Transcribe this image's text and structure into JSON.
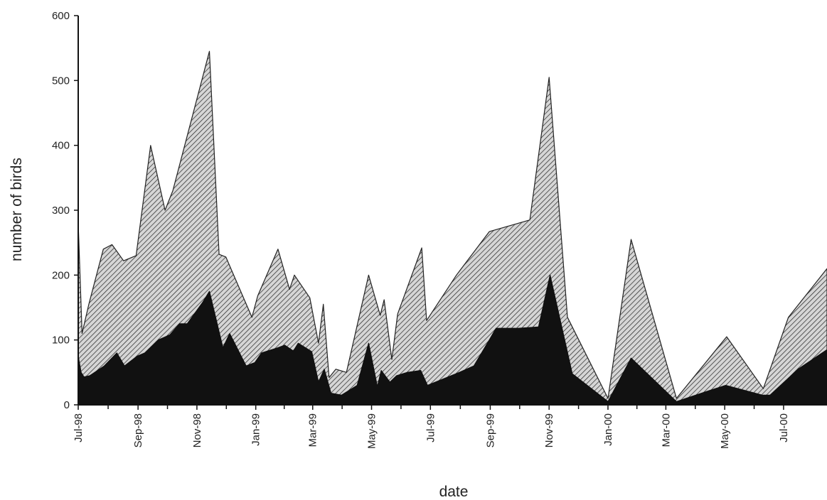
{
  "chart_data": {
    "type": "area",
    "stacked": true,
    "title": "",
    "xlabel": "date",
    "ylabel": "number of birds",
    "ylim": [
      0,
      600
    ],
    "xlim": [
      "1998-07-01",
      "2000-08-15"
    ],
    "yticks": [
      0,
      100,
      200,
      300,
      400,
      500,
      600
    ],
    "xticks": [
      {
        "date": "1998-07-01",
        "label": "Jul-98"
      },
      {
        "date": "1998-09-01",
        "label": "Sep-98"
      },
      {
        "date": "1998-11-01",
        "label": "Nov-98"
      },
      {
        "date": "1999-01-01",
        "label": "Jan-99"
      },
      {
        "date": "1999-03-01",
        "label": "Mar-99"
      },
      {
        "date": "1999-05-01",
        "label": "May-99"
      },
      {
        "date": "1999-07-01",
        "label": "Jul-99"
      },
      {
        "date": "1999-09-01",
        "label": "Sep-99"
      },
      {
        "date": "1999-11-01",
        "label": "Nov-99"
      },
      {
        "date": "2000-01-01",
        "label": "Jan-00"
      },
      {
        "date": "2000-03-01",
        "label": "Mar-00"
      },
      {
        "date": "2000-05-01",
        "label": "May-00"
      },
      {
        "date": "2000-07-01",
        "label": "Jul-00"
      }
    ],
    "grid": false,
    "legend": "none",
    "colors": {
      "lower": "#111111",
      "upper_fill": "#d6d6d6",
      "upper_hatch": "#222222",
      "axis": "#111111"
    },
    "series": [
      {
        "fill": "solid-black",
        "points": [
          [
            "1998-07-01",
            75
          ],
          [
            "1998-07-04",
            50
          ],
          [
            "1998-07-07",
            43
          ],
          [
            "1998-07-13",
            45
          ],
          [
            "1998-07-28",
            60
          ],
          [
            "1998-08-10",
            80
          ],
          [
            "1998-08-18",
            60
          ],
          [
            "1998-08-31",
            75
          ],
          [
            "1998-09-08",
            80
          ],
          [
            "1998-09-22",
            100
          ],
          [
            "1998-10-04",
            108
          ],
          [
            "1998-10-14",
            125
          ],
          [
            "1998-10-22",
            125
          ],
          [
            "1998-11-07",
            158
          ],
          [
            "1998-11-14",
            175
          ],
          [
            "1998-11-28",
            88
          ],
          [
            "1998-12-05",
            110
          ],
          [
            "1998-12-22",
            60
          ],
          [
            "1998-12-31",
            65
          ],
          [
            "1999-01-07",
            80
          ],
          [
            "1999-01-24",
            88
          ],
          [
            "1999-01-31",
            92
          ],
          [
            "1999-02-09",
            83
          ],
          [
            "1999-02-14",
            95
          ],
          [
            "1999-02-28",
            82
          ],
          [
            "1999-03-07",
            35
          ],
          [
            "1999-03-13",
            55
          ],
          [
            "1999-03-20",
            18
          ],
          [
            "1999-03-31",
            15
          ],
          [
            "1999-04-16",
            30
          ],
          [
            "1999-04-28",
            95
          ],
          [
            "1999-05-07",
            28
          ],
          [
            "1999-05-11",
            53
          ],
          [
            "1999-05-20",
            35
          ],
          [
            "1999-05-27",
            45
          ],
          [
            "1999-06-07",
            50
          ],
          [
            "1999-06-21",
            53
          ],
          [
            "1999-06-28",
            30
          ],
          [
            "1999-07-31",
            50
          ],
          [
            "1999-08-15",
            60
          ],
          [
            "1999-08-31",
            100
          ],
          [
            "1999-09-07",
            118
          ],
          [
            "1999-09-30",
            118
          ],
          [
            "1999-10-21",
            120
          ],
          [
            "1999-11-02",
            200
          ],
          [
            "1999-11-25",
            48
          ],
          [
            "2000-01-01",
            5
          ],
          [
            "2000-01-25",
            72
          ],
          [
            "2000-03-12",
            5
          ],
          [
            "2000-04-15",
            22
          ],
          [
            "2000-05-02",
            30
          ],
          [
            "2000-06-09",
            15
          ],
          [
            "2000-06-17",
            15
          ],
          [
            "2000-07-16",
            55
          ],
          [
            "2000-08-15",
            85
          ]
        ]
      },
      {
        "fill": "hatched",
        "points": [
          [
            "1998-07-01",
            280
          ],
          [
            "1998-07-05",
            110
          ],
          [
            "1998-07-12",
            155
          ],
          [
            "1998-07-27",
            240
          ],
          [
            "1998-08-05",
            247
          ],
          [
            "1998-08-17",
            222
          ],
          [
            "1998-08-30",
            230
          ],
          [
            "1998-09-14",
            400
          ],
          [
            "1998-09-29",
            300
          ],
          [
            "1998-10-07",
            330
          ],
          [
            "1998-11-14",
            545
          ],
          [
            "1998-11-24",
            232
          ],
          [
            "1998-12-01",
            228
          ],
          [
            "1998-12-28",
            135
          ],
          [
            "1999-01-03",
            168
          ],
          [
            "1999-01-24",
            240
          ],
          [
            "1999-02-05",
            178
          ],
          [
            "1999-02-10",
            200
          ],
          [
            "1999-02-26",
            165
          ],
          [
            "1999-03-07",
            95
          ],
          [
            "1999-03-12",
            155
          ],
          [
            "1999-03-18",
            42
          ],
          [
            "1999-03-25",
            55
          ],
          [
            "1999-04-05",
            50
          ],
          [
            "1999-04-28",
            200
          ],
          [
            "1999-05-10",
            138
          ],
          [
            "1999-05-14",
            162
          ],
          [
            "1999-05-22",
            70
          ],
          [
            "1999-05-28",
            140
          ],
          [
            "1999-06-22",
            242
          ],
          [
            "1999-06-27",
            130
          ],
          [
            "1999-07-28",
            200
          ],
          [
            "1999-08-31",
            267
          ],
          [
            "1999-10-12",
            285
          ],
          [
            "1999-11-01",
            505
          ],
          [
            "1999-11-20",
            135
          ],
          [
            "2000-01-01",
            10
          ],
          [
            "2000-01-25",
            255
          ],
          [
            "2000-03-12",
            10
          ],
          [
            "2000-05-03",
            105
          ],
          [
            "2000-06-10",
            25
          ],
          [
            "2000-07-06",
            135
          ],
          [
            "2000-08-15",
            210
          ]
        ]
      }
    ]
  }
}
